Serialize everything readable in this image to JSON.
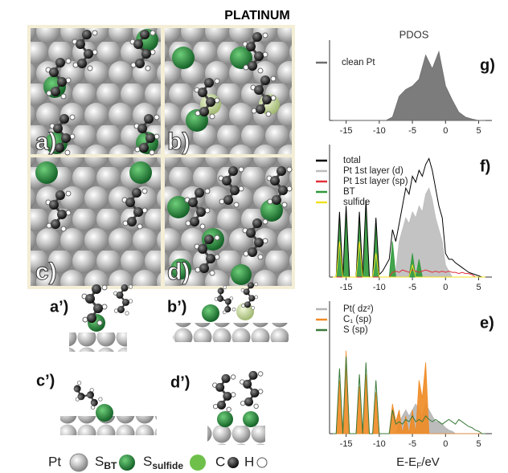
{
  "title": "PLATINUM",
  "panels": [
    "a)",
    "b)",
    "c)",
    "d)"
  ],
  "side_panels": [
    "a’)",
    "b’)",
    "c’)",
    "d’)"
  ],
  "legend": {
    "pt": "Pt",
    "s_bt": {
      "main": "S",
      "sub": "BT"
    },
    "s_sulfide": {
      "main": "S",
      "sub": "sulfide"
    },
    "c": "C",
    "h": "H"
  },
  "chart_data": [
    {
      "type": "line",
      "title": "PDOS",
      "panel": "g)",
      "x": [
        -17,
        -16,
        -15,
        -14,
        -13,
        -12,
        -11,
        -10,
        -9,
        -8,
        -7,
        -6,
        -5,
        -4,
        -3,
        -2,
        -1,
        0,
        1,
        2,
        3,
        4,
        5,
        6
      ],
      "series": [
        {
          "name": "clean Pt",
          "color": "#6e6e6e",
          "fill": true,
          "values": [
            0,
            0,
            0,
            0,
            0,
            0,
            0,
            0,
            0,
            0.05,
            0.35,
            0.45,
            0.5,
            0.6,
            0.95,
            0.75,
            1.0,
            0.5,
            0.3,
            0.12,
            0.05,
            0.02,
            0,
            0
          ]
        }
      ],
      "xlim": [
        -17.5,
        7
      ],
      "ylim": [
        0,
        1.05
      ],
      "xticks": [
        -15,
        -10,
        -5,
        0,
        5
      ]
    },
    {
      "type": "line",
      "panel": "f)",
      "x": [
        -17,
        -16.5,
        -16,
        -15.5,
        -15,
        -14.5,
        -14,
        -13.5,
        -13,
        -12.5,
        -12,
        -11.5,
        -11,
        -10.5,
        -10,
        -9.5,
        -9,
        -8.5,
        -8,
        -7.5,
        -7,
        -6.5,
        -6,
        -5.5,
        -5,
        -4.5,
        -4,
        -3.5,
        -3,
        -2.5,
        -2,
        -1.5,
        -1,
        -0.5,
        0,
        0.5,
        1,
        1.5,
        2,
        2.5,
        3,
        3.5,
        4,
        4.5,
        5,
        5.5,
        6
      ],
      "series": [
        {
          "name": "total",
          "color": "#000000",
          "fill": false,
          "values": [
            0,
            0,
            0.55,
            0,
            0.6,
            0,
            0,
            0,
            0.55,
            0,
            0.65,
            0,
            0,
            0.5,
            0.02,
            0.05,
            0.1,
            0.15,
            0.4,
            0.3,
            0.45,
            0.6,
            0.75,
            0.7,
            0.85,
            0.8,
            0.9,
            0.85,
            0.95,
            1.0,
            0.9,
            0.75,
            0.6,
            0.5,
            0.2,
            0.15,
            0.15,
            0.12,
            0.1,
            0.08,
            0.06,
            0.04,
            0.03,
            0.02,
            0.01,
            0,
            0
          ]
        },
        {
          "name": "Pt 1st layer (d)",
          "color": "#bdbdbd",
          "fill": true,
          "values": [
            0,
            0,
            0,
            0,
            0,
            0,
            0,
            0,
            0,
            0,
            0,
            0,
            0,
            0,
            0,
            0,
            0,
            0,
            0,
            0.05,
            0.3,
            0.4,
            0.5,
            0.45,
            0.55,
            0.5,
            0.6,
            0.55,
            0.7,
            0.75,
            0.65,
            0.5,
            0.4,
            0.3,
            0.1,
            0.05,
            0,
            0,
            0,
            0,
            0,
            0,
            0,
            0,
            0,
            0,
            0
          ]
        },
        {
          "name": "Pt 1st layer (sp)",
          "color": "#e0303a",
          "fill": false,
          "values": [
            0,
            0,
            0,
            0,
            0,
            0,
            0,
            0,
            0,
            0,
            0,
            0,
            0,
            0,
            0,
            0,
            0,
            0,
            0.04,
            0.05,
            0.04,
            0.06,
            0.05,
            0.04,
            0.06,
            0.05,
            0.04,
            0.05,
            0.06,
            0.05,
            0.04,
            0.05,
            0.04,
            0.05,
            0.04,
            0.05,
            0.04,
            0.04,
            0.03,
            0.04,
            0.03,
            0.03,
            0.02,
            0,
            0,
            0,
            0
          ]
        },
        {
          "name": "BT",
          "color": "#2f9a3a",
          "fill": true,
          "values": [
            0,
            0,
            0.5,
            0,
            0.55,
            0,
            0,
            0,
            0.5,
            0,
            0.6,
            0,
            0,
            0.45,
            0,
            0,
            0,
            0,
            0.3,
            0,
            0,
            0,
            0,
            0,
            0.2,
            0,
            0.15,
            0,
            0,
            0,
            0,
            0,
            0,
            0,
            0,
            0,
            0,
            0,
            0,
            0,
            0,
            0,
            0,
            0,
            0,
            0,
            0
          ]
        },
        {
          "name": "sulfide",
          "color": "#f0e020",
          "fill": false,
          "values": [
            0,
            0,
            0.3,
            0,
            0,
            0,
            0,
            0,
            0.3,
            0,
            0,
            0,
            0,
            0.2,
            0,
            0,
            0,
            0,
            0,
            0,
            0,
            0,
            0,
            0,
            0.1,
            0,
            0,
            0,
            0,
            0,
            0,
            0,
            0,
            0,
            0,
            0,
            0,
            0,
            0,
            0,
            0,
            0,
            0,
            0,
            0,
            0,
            0
          ]
        }
      ],
      "xlim": [
        -17.5,
        7
      ],
      "ylim": [
        0,
        1.05
      ],
      "xticks": [
        -15,
        -10,
        -5,
        0,
        5
      ]
    },
    {
      "type": "line",
      "panel": "e)",
      "x": [
        -17,
        -16.5,
        -16,
        -15.5,
        -15,
        -14.5,
        -14,
        -13.5,
        -13,
        -12.5,
        -12,
        -11.5,
        -11,
        -10.5,
        -10,
        -9.5,
        -9,
        -8.5,
        -8,
        -7.5,
        -7,
        -6.5,
        -6,
        -5.5,
        -5,
        -4.5,
        -4,
        -3.5,
        -3,
        -2.5,
        -2,
        -1.5,
        -1,
        -0.5,
        0,
        0.5,
        1,
        1.5,
        2,
        2.5,
        3,
        3.5,
        4,
        4.5,
        5,
        5.5,
        6
      ],
      "series": [
        {
          "name": "Pt( dz²)",
          "color": "#b5b5b5",
          "fill": true,
          "values": [
            0,
            0,
            0,
            0,
            0,
            0,
            0,
            0,
            0,
            0,
            0,
            0,
            0,
            0,
            0,
            0,
            0,
            0,
            0,
            0,
            0.1,
            0.15,
            0.2,
            0.15,
            0.2,
            0.25,
            0.2,
            0.15,
            0.25,
            0.2,
            0.15,
            0.1,
            0.1,
            0.08,
            0.05,
            0.03,
            0.02,
            0,
            0,
            0,
            0,
            0,
            0,
            0,
            0,
            0,
            0
          ]
        },
        {
          "name": "C₁ (sp)",
          "color": "#f08a24",
          "fill": true,
          "values": [
            0,
            0,
            0.45,
            0,
            0.7,
            0,
            0,
            0,
            0.4,
            0,
            0.5,
            0,
            0,
            0.35,
            0,
            0,
            0,
            0,
            0.25,
            0.1,
            0.2,
            0,
            0.15,
            0,
            0.2,
            0,
            0.45,
            0.3,
            0.6,
            0,
            0,
            0,
            0,
            0,
            0,
            0,
            0,
            0,
            0,
            0,
            0,
            0,
            0,
            0,
            0,
            0,
            0
          ]
        },
        {
          "name": "S (sp)",
          "color": "#3a7a3a",
          "fill": false,
          "values": [
            0,
            0,
            0.55,
            0,
            0.65,
            0,
            0,
            0,
            0.5,
            0,
            0.6,
            0,
            0,
            0.45,
            0,
            0,
            0,
            0,
            0.2,
            0.08,
            0.1,
            0.08,
            0.12,
            0.1,
            0.15,
            0.1,
            0.12,
            0.1,
            0.15,
            0.12,
            0.1,
            0.12,
            0.1,
            0.08,
            0.1,
            0.12,
            0.1,
            0.08,
            0.12,
            0.1,
            0.08,
            0.06,
            0.05,
            0.03,
            0.02,
            0,
            0
          ]
        }
      ],
      "xlim": [
        -17.5,
        7
      ],
      "ylim": [
        0,
        1.05
      ],
      "xticks": [
        -15,
        -10,
        -5,
        0,
        5
      ],
      "xlabel": {
        "main": "E-E",
        "sub": "F",
        "tail": "/eV"
      }
    }
  ]
}
